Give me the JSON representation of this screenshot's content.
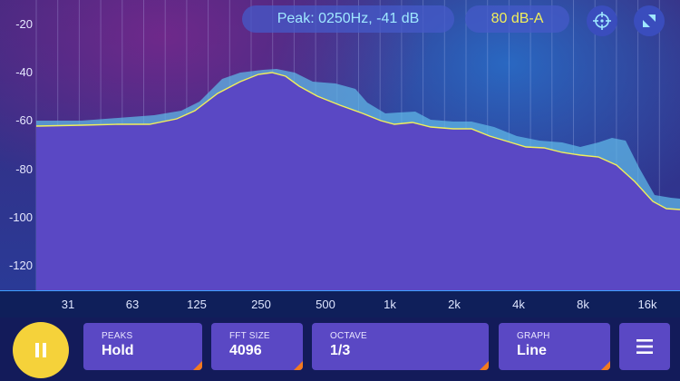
{
  "header": {
    "peak_readout": "Peak: 0250Hz, -41 dB",
    "level_readout": "80 dB-A",
    "crosshair_icon": "crosshair-icon",
    "resize_icon": "resize-icon"
  },
  "y_axis": [
    "-20",
    "-40",
    "-60",
    "-80",
    "-100",
    "-120"
  ],
  "x_axis": [
    "31",
    "63",
    "125",
    "250",
    "500",
    "1k",
    "2k",
    "4k",
    "8k",
    "16k"
  ],
  "controls": [
    {
      "caption": "PEAKS",
      "value": "Hold"
    },
    {
      "caption": "FFT SIZE",
      "value": "4096"
    },
    {
      "caption": "OCTAVE",
      "value": "1/3"
    },
    {
      "caption": "GRAPH",
      "value": "Line"
    }
  ],
  "play": {
    "icon": "pause-icon"
  },
  "menu": {
    "icon": "menu-icon"
  },
  "colors": {
    "fill": "#5a48c4",
    "peak_fill": "#5fb6e6",
    "line": "#f2ef5a",
    "accent": "#f5d23a",
    "corner": "#f47a1f"
  }
}
